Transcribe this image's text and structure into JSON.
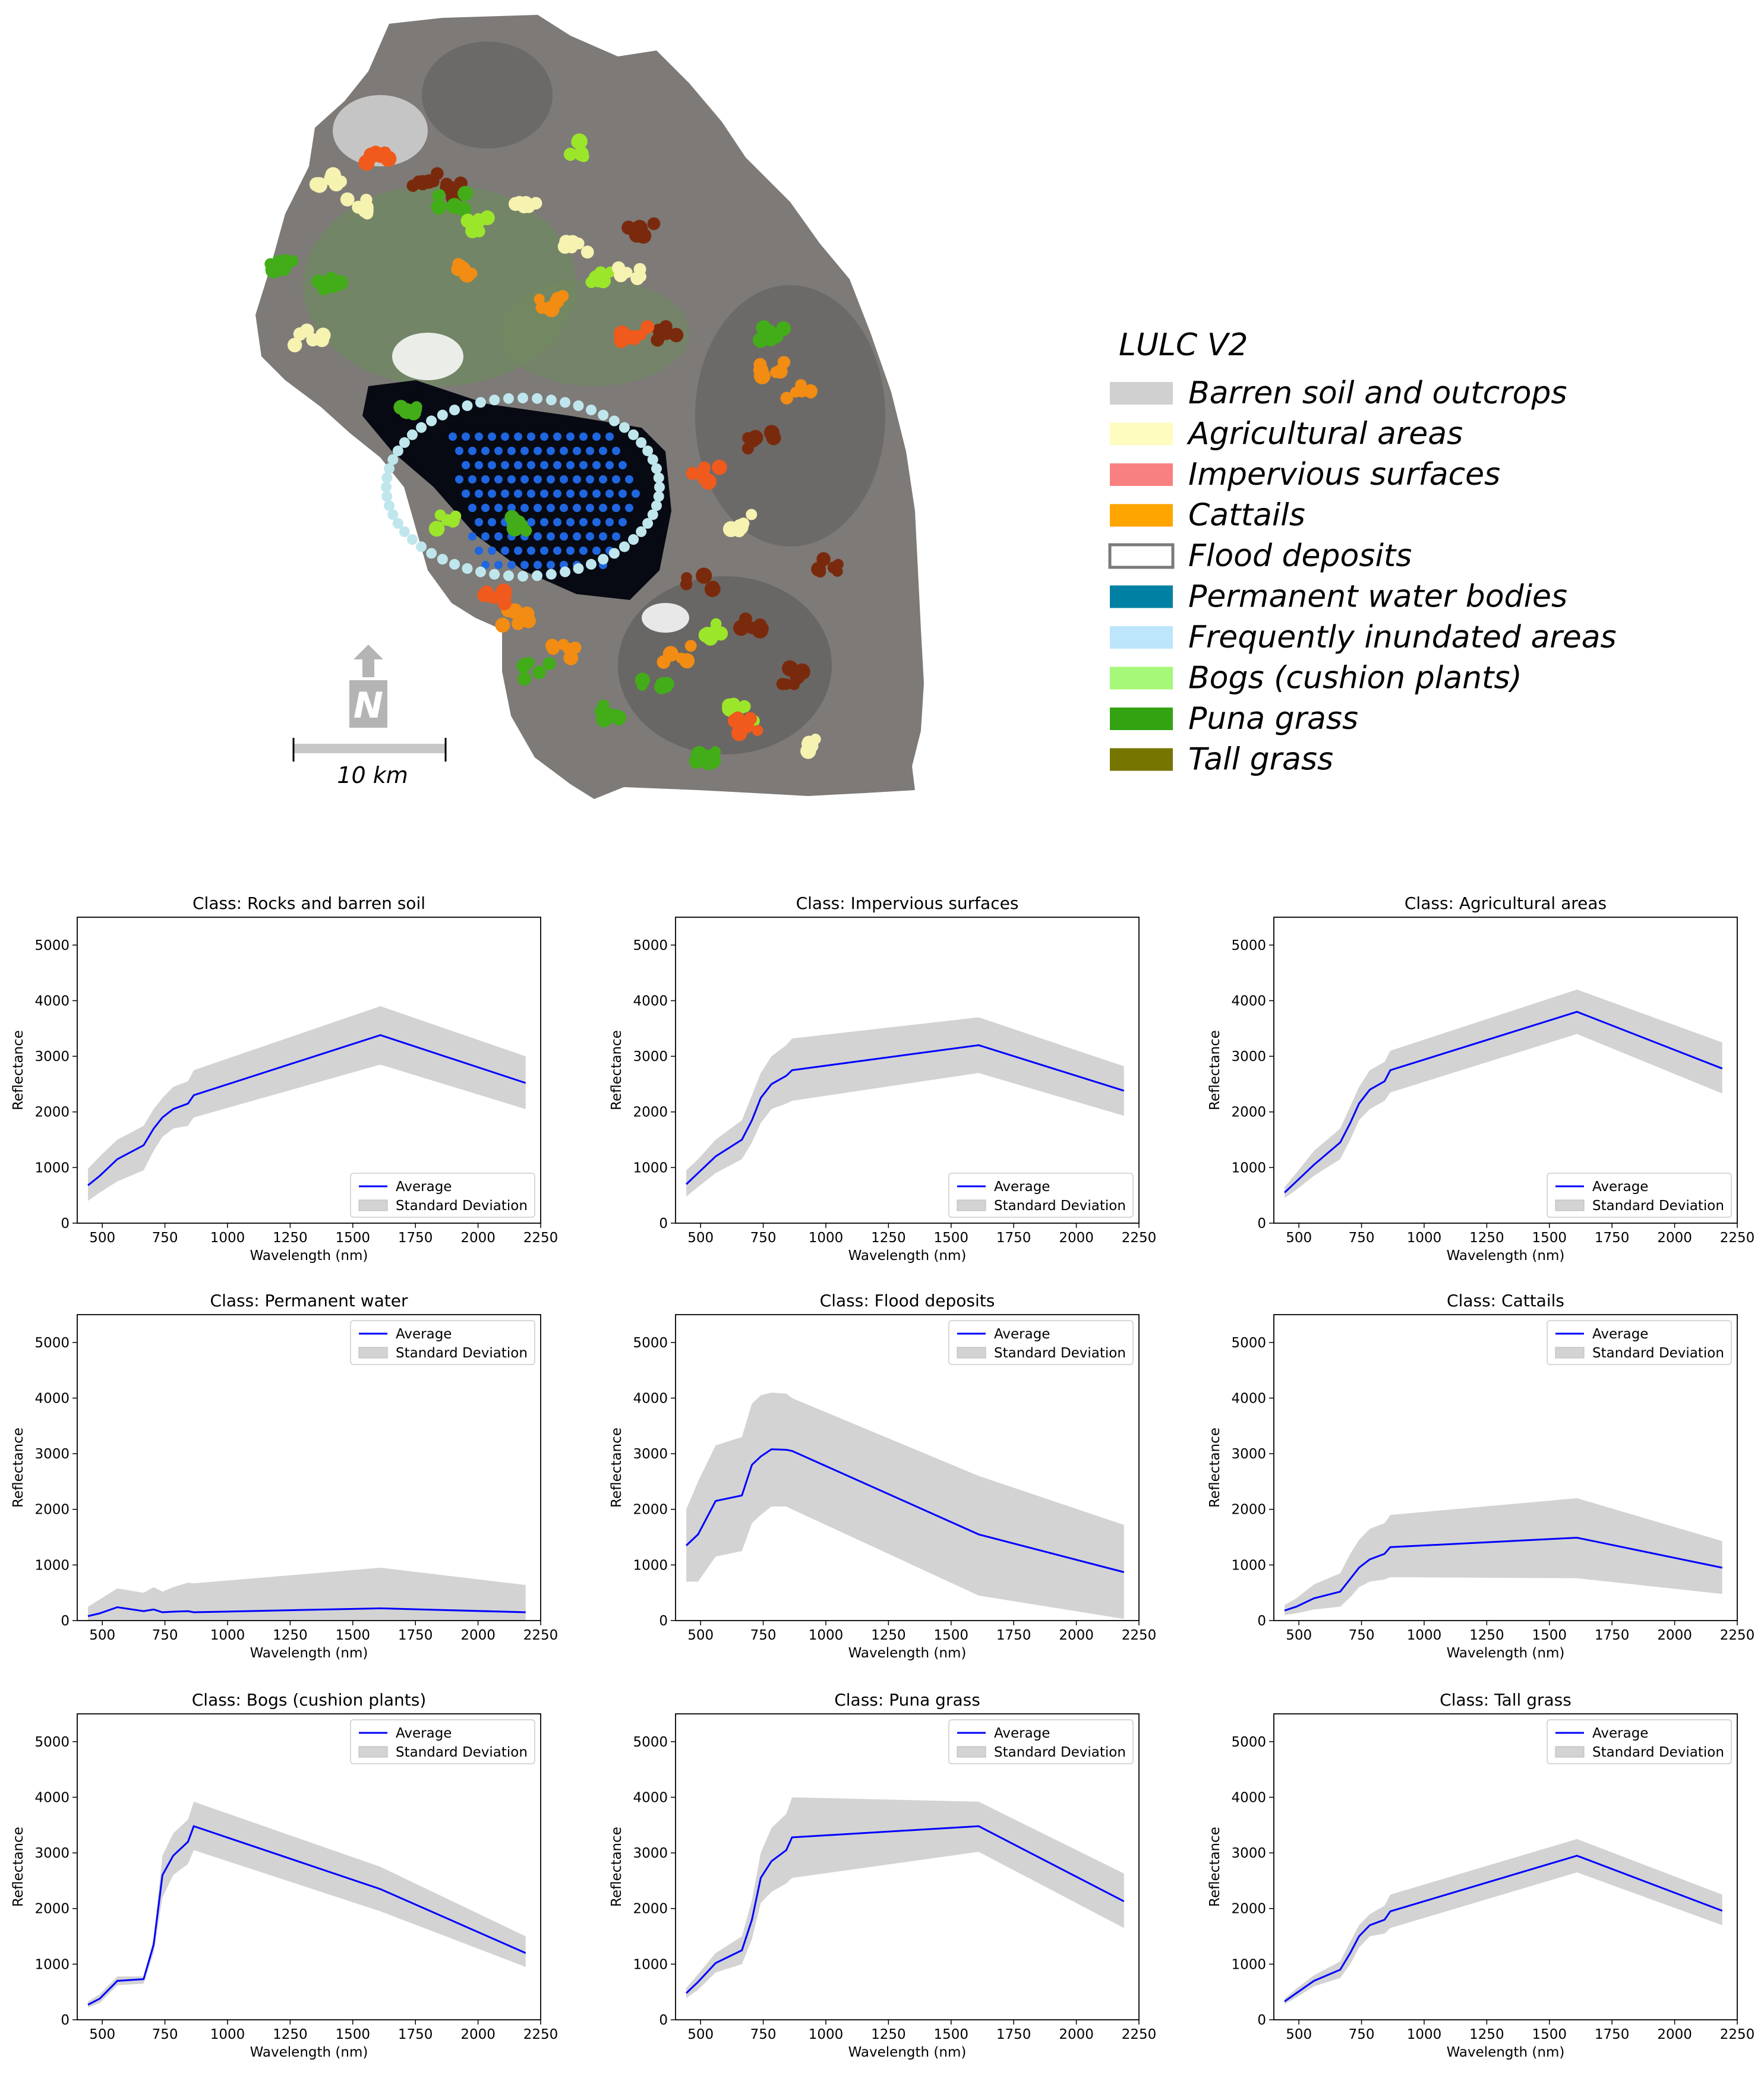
{
  "map": {
    "legend_title": "LULC V2",
    "legend": [
      {
        "label": "Barren soil and outcrops",
        "color": "#d0d0d0",
        "outline": false
      },
      {
        "label": "Agricultural areas",
        "color": "#fffcc0",
        "outline": false
      },
      {
        "label": "Impervious surfaces",
        "color": "#f98080",
        "outline": false
      },
      {
        "label": "Cattails",
        "color": "#ffa500",
        "outline": false
      },
      {
        "label": "Flood deposits",
        "color": "#ffffff",
        "outline": true
      },
      {
        "label": "Permanent water bodies",
        "color": "#0081a3",
        "outline": false
      },
      {
        "label": "Frequently inundated areas",
        "color": "#bde5fb",
        "outline": false
      },
      {
        "label": "Bogs (cushion plants)",
        "color": "#a6f878",
        "outline": false
      },
      {
        "label": "Puna grass",
        "color": "#33a312",
        "outline": false
      },
      {
        "label": "Tall grass",
        "color": "#757500",
        "outline": false
      }
    ],
    "scale_label": "10 km",
    "north_label": "N",
    "colors": {
      "terrain": "#7d7a78",
      "terrain_dark": "#5c5a58",
      "vegetation": "#6f8a5f",
      "lake": "#070a12",
      "water_dots": "#1f66e0",
      "inundated": "#bfe6ec",
      "agri": "#f6f2b0",
      "brown": "#7a2a0c",
      "orange": "#f28c12",
      "red_orange": "#f05a1c",
      "green": "#42ad19",
      "light_green": "#9be62a"
    }
  },
  "chart_style": {
    "line_color": "#0000ff",
    "band_color": "#d3d3d3",
    "legend_average": "Average",
    "legend_sd": "Standard Deviation"
  },
  "chart_data": [
    {
      "type": "line",
      "title": "Class: Rocks and barren soil",
      "xlabel": "Wavelength (nm)",
      "ylabel": "Reflectance",
      "xlim": [
        400,
        2250
      ],
      "ylim": [
        0,
        5500
      ],
      "xticks": [
        500,
        750,
        1000,
        1250,
        1500,
        1750,
        2000,
        2250
      ],
      "yticks": [
        0,
        1000,
        2000,
        3000,
        4000,
        5000
      ],
      "legend_position": "lower-right",
      "x": [
        443,
        490,
        560,
        665,
        705,
        740,
        783,
        842,
        865,
        1610,
        2190
      ],
      "series": [
        {
          "name": "Average",
          "values": [
            680,
            850,
            1150,
            1400,
            1700,
            1900,
            2050,
            2150,
            2300,
            3380,
            2520
          ]
        },
        {
          "name": "Standard Deviation Upper",
          "values": [
            980,
            1200,
            1500,
            1750,
            2050,
            2250,
            2450,
            2550,
            2750,
            3900,
            3000
          ]
        },
        {
          "name": "Standard Deviation Lower",
          "values": [
            400,
            550,
            750,
            950,
            1300,
            1550,
            1700,
            1750,
            1900,
            2850,
            2050
          ]
        }
      ]
    },
    {
      "type": "line",
      "title": "Class: Impervious surfaces",
      "xlabel": "Wavelength (nm)",
      "ylabel": "Reflectance",
      "xlim": [
        400,
        2250
      ],
      "ylim": [
        0,
        5500
      ],
      "xticks": [
        500,
        750,
        1000,
        1250,
        1500,
        1750,
        2000,
        2250
      ],
      "yticks": [
        0,
        1000,
        2000,
        3000,
        4000,
        5000
      ],
      "legend_position": "lower-right",
      "x": [
        443,
        490,
        560,
        665,
        705,
        740,
        783,
        842,
        865,
        1610,
        2190
      ],
      "series": [
        {
          "name": "Average",
          "values": [
            700,
            900,
            1200,
            1500,
            1850,
            2250,
            2500,
            2650,
            2750,
            3200,
            2380
          ]
        },
        {
          "name": "Standard Deviation Upper",
          "values": [
            950,
            1150,
            1500,
            1850,
            2300,
            2700,
            3000,
            3200,
            3320,
            3700,
            2820
          ]
        },
        {
          "name": "Standard Deviation Lower",
          "values": [
            480,
            650,
            900,
            1150,
            1450,
            1800,
            2050,
            2150,
            2200,
            2700,
            1930
          ]
        }
      ]
    },
    {
      "type": "line",
      "title": "Class: Agricultural areas",
      "xlabel": "Wavelength (nm)",
      "ylabel": "Reflectance",
      "xlim": [
        400,
        2250
      ],
      "ylim": [
        0,
        5500
      ],
      "xticks": [
        500,
        750,
        1000,
        1250,
        1500,
        1750,
        2000,
        2250
      ],
      "yticks": [
        0,
        1000,
        2000,
        3000,
        4000,
        5000
      ],
      "legend_position": "lower-right",
      "x": [
        443,
        490,
        560,
        665,
        705,
        740,
        783,
        842,
        865,
        1610,
        2190
      ],
      "series": [
        {
          "name": "Average",
          "values": [
            550,
            750,
            1050,
            1450,
            1800,
            2150,
            2400,
            2550,
            2750,
            3800,
            2780
          ]
        },
        {
          "name": "Standard Deviation Upper",
          "values": [
            650,
            900,
            1300,
            1700,
            2100,
            2450,
            2750,
            2900,
            3100,
            4200,
            3250
          ]
        },
        {
          "name": "Standard Deviation Lower",
          "values": [
            450,
            600,
            850,
            1150,
            1500,
            1850,
            2050,
            2200,
            2350,
            3400,
            2330
          ]
        }
      ]
    },
    {
      "type": "line",
      "title": "Class: Permanent water",
      "xlabel": "Wavelength (nm)",
      "ylabel": "Reflectance",
      "xlim": [
        400,
        2250
      ],
      "ylim": [
        0,
        5500
      ],
      "xticks": [
        500,
        750,
        1000,
        1250,
        1500,
        1750,
        2000,
        2250
      ],
      "yticks": [
        0,
        1000,
        2000,
        3000,
        4000,
        5000
      ],
      "legend_position": "upper-right",
      "x": [
        443,
        490,
        560,
        665,
        705,
        740,
        783,
        842,
        865,
        1610,
        2190
      ],
      "series": [
        {
          "name": "Average",
          "values": [
            80,
            130,
            240,
            170,
            200,
            150,
            160,
            170,
            150,
            220,
            150
          ]
        },
        {
          "name": "Standard Deviation Upper",
          "values": [
            250,
            380,
            580,
            500,
            600,
            520,
            600,
            680,
            670,
            950,
            640
          ]
        },
        {
          "name": "Standard Deviation Lower",
          "values": [
            0,
            0,
            0,
            0,
            0,
            0,
            0,
            0,
            0,
            0,
            0
          ]
        }
      ]
    },
    {
      "type": "line",
      "title": "Class: Flood deposits",
      "xlabel": "Wavelength (nm)",
      "ylabel": "Reflectance",
      "xlim": [
        400,
        2250
      ],
      "ylim": [
        0,
        5500
      ],
      "xticks": [
        500,
        750,
        1000,
        1250,
        1500,
        1750,
        2000,
        2250
      ],
      "yticks": [
        0,
        1000,
        2000,
        3000,
        4000,
        5000
      ],
      "legend_position": "upper-right",
      "x": [
        443,
        490,
        560,
        665,
        705,
        740,
        783,
        842,
        865,
        1610,
        2190
      ],
      "series": [
        {
          "name": "Average",
          "values": [
            1350,
            1550,
            2150,
            2250,
            2800,
            2950,
            3080,
            3070,
            3050,
            1550,
            870
          ]
        },
        {
          "name": "Standard Deviation Upper",
          "values": [
            2000,
            2500,
            3150,
            3300,
            3900,
            4050,
            4100,
            4080,
            4000,
            2600,
            1720
          ]
        },
        {
          "name": "Standard Deviation Lower",
          "values": [
            700,
            700,
            1150,
            1250,
            1750,
            1900,
            2050,
            2050,
            2000,
            450,
            30
          ]
        }
      ]
    },
    {
      "type": "line",
      "title": "Class: Cattails",
      "xlabel": "Wavelength (nm)",
      "ylabel": "Reflectance",
      "xlim": [
        400,
        2250
      ],
      "ylim": [
        0,
        5500
      ],
      "xticks": [
        500,
        750,
        1000,
        1250,
        1500,
        1750,
        2000,
        2250
      ],
      "yticks": [
        0,
        1000,
        2000,
        3000,
        4000,
        5000
      ],
      "legend_position": "upper-right",
      "x": [
        443,
        490,
        560,
        665,
        705,
        740,
        783,
        842,
        865,
        1610,
        2190
      ],
      "series": [
        {
          "name": "Average",
          "values": [
            180,
            250,
            400,
            520,
            750,
            950,
            1100,
            1200,
            1320,
            1490,
            950
          ]
        },
        {
          "name": "Standard Deviation Upper",
          "values": [
            280,
            400,
            650,
            850,
            1200,
            1450,
            1650,
            1750,
            1900,
            2200,
            1430
          ]
        },
        {
          "name": "Standard Deviation Lower",
          "values": [
            100,
            130,
            200,
            250,
            420,
            600,
            700,
            740,
            780,
            760,
            480
          ]
        }
      ]
    },
    {
      "type": "line",
      "title": "Class: Bogs (cushion plants)",
      "xlabel": "Wavelength (nm)",
      "ylabel": "Reflectance",
      "xlim": [
        400,
        2250
      ],
      "ylim": [
        0,
        5500
      ],
      "xticks": [
        500,
        750,
        1000,
        1250,
        1500,
        1750,
        2000,
        2250
      ],
      "yticks": [
        0,
        1000,
        2000,
        3000,
        4000,
        5000
      ],
      "legend_position": "upper-right",
      "x": [
        443,
        490,
        560,
        665,
        705,
        740,
        783,
        842,
        865,
        1610,
        2190
      ],
      "series": [
        {
          "name": "Average",
          "values": [
            270,
            380,
            700,
            730,
            1350,
            2600,
            2950,
            3200,
            3480,
            2350,
            1200
          ]
        },
        {
          "name": "Standard Deviation Upper",
          "values": [
            330,
            460,
            780,
            780,
            1450,
            2950,
            3350,
            3600,
            3920,
            2750,
            1500
          ]
        },
        {
          "name": "Standard Deviation Lower",
          "values": [
            220,
            300,
            620,
            650,
            1200,
            2200,
            2600,
            2800,
            3050,
            1950,
            950
          ]
        }
      ]
    },
    {
      "type": "line",
      "title": "Class: Puna grass",
      "xlabel": "Wavelength (nm)",
      "ylabel": "Reflectance",
      "xlim": [
        400,
        2250
      ],
      "ylim": [
        0,
        5500
      ],
      "xticks": [
        500,
        750,
        1000,
        1250,
        1500,
        1750,
        2000,
        2250
      ],
      "yticks": [
        0,
        1000,
        2000,
        3000,
        4000,
        5000
      ],
      "legend_position": "upper-right",
      "x": [
        443,
        490,
        560,
        665,
        705,
        740,
        783,
        842,
        865,
        1610,
        2190
      ],
      "series": [
        {
          "name": "Average",
          "values": [
            480,
            680,
            1020,
            1250,
            1800,
            2550,
            2850,
            3050,
            3280,
            3480,
            2130
          ]
        },
        {
          "name": "Standard Deviation Upper",
          "values": [
            570,
            820,
            1200,
            1500,
            2150,
            3000,
            3450,
            3700,
            4000,
            3920,
            2630
          ]
        },
        {
          "name": "Standard Deviation Lower",
          "values": [
            390,
            540,
            850,
            1000,
            1450,
            2100,
            2300,
            2450,
            2550,
            3020,
            1650
          ]
        }
      ]
    },
    {
      "type": "line",
      "title": "Class: Tall grass",
      "xlabel": "Wavelength (nm)",
      "ylabel": "Reflectance",
      "xlim": [
        400,
        2250
      ],
      "ylim": [
        0,
        5500
      ],
      "xticks": [
        500,
        750,
        1000,
        1250,
        1500,
        1750,
        2000,
        2250
      ],
      "yticks": [
        0,
        1000,
        2000,
        3000,
        4000,
        5000
      ],
      "legend_position": "upper-right",
      "x": [
        443,
        490,
        560,
        665,
        705,
        740,
        783,
        842,
        865,
        1610,
        2190
      ],
      "series": [
        {
          "name": "Average",
          "values": [
            330,
            480,
            700,
            900,
            1200,
            1500,
            1700,
            1800,
            1950,
            2950,
            1960
          ]
        },
        {
          "name": "Standard Deviation Upper",
          "values": [
            380,
            560,
            800,
            1050,
            1400,
            1700,
            1900,
            2050,
            2250,
            3250,
            2250
          ]
        },
        {
          "name": "Standard Deviation Lower",
          "values": [
            280,
            400,
            600,
            750,
            1000,
            1300,
            1500,
            1550,
            1650,
            2650,
            1700
          ]
        }
      ]
    }
  ]
}
